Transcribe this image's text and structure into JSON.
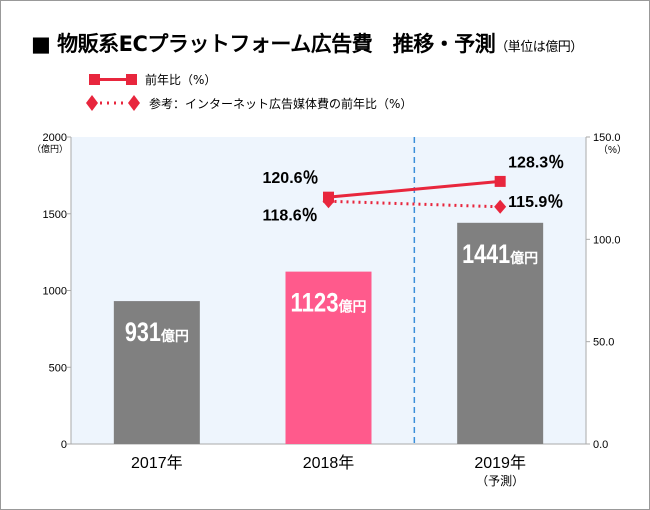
{
  "title": "■ 物販系ECプラットフォーム広告費　推移・予測",
  "unit": "（単位は億円）",
  "colors": {
    "bar_normal": "#808080",
    "bar_highlight": "#ff5a8c",
    "line": "#e8263d",
    "plot_bg": "#eef5fd",
    "divider": "#3b8fd9"
  },
  "chart_data": {
    "type": "bar+line",
    "categories": [
      "2017年",
      "2018年",
      "2019年"
    ],
    "category_sublabels": [
      "",
      "",
      "（予測）"
    ],
    "y_left": {
      "unit": "（億円）",
      "ylim": [
        0,
        2000
      ],
      "ticks": [
        "0",
        "500",
        "1000",
        "1500",
        "2000"
      ]
    },
    "y_right": {
      "unit": "（%）",
      "ylim": [
        0,
        150
      ],
      "ticks": [
        "0.0",
        "50.0",
        "100.0",
        "150.0"
      ]
    },
    "bars": {
      "values": [
        931,
        1123,
        1441
      ],
      "labels": [
        "931",
        "1123",
        "1441"
      ],
      "label_suffix": "億円",
      "highlight_index": 1
    },
    "series": [
      {
        "name": "前年比（%）",
        "style": "solid-square",
        "points": [
          {
            "x": "2018年",
            "y": 120.6,
            "label": "120.6％"
          },
          {
            "x": "2019年",
            "y": 128.3,
            "label": "128.3％"
          }
        ]
      },
      {
        "name": "参考：インターネット広告媒体費の前年比（%）",
        "style": "dotted-diamond",
        "points": [
          {
            "x": "2018年",
            "y": 118.6,
            "label": "118.6％"
          },
          {
            "x": "2019年",
            "y": 115.9,
            "label": "115.9％"
          }
        ]
      }
    ],
    "forecast_divider_between": [
      "2018年",
      "2019年"
    ],
    "grid": false,
    "legend_placement": "top-left"
  }
}
